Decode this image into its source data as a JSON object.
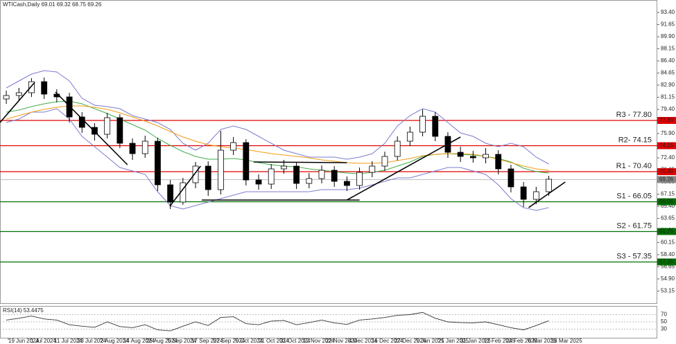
{
  "chart_data": {
    "type": "candlestick",
    "title": "WTICash,Daily  69.01 69.32 68.75 69.26",
    "x": [
      0,
      1,
      2,
      3,
      4,
      5,
      6,
      7,
      8,
      9,
      10,
      11,
      12,
      13,
      14,
      15,
      16,
      17,
      18,
      19,
      20,
      21,
      22,
      23,
      24,
      25,
      26,
      27,
      28,
      29,
      30,
      31,
      32,
      33,
      34,
      35,
      36,
      37,
      38,
      39,
      40,
      41,
      42,
      43
    ],
    "open": [
      80.9,
      81.4,
      81.8,
      83.4,
      81.6,
      81.2,
      78.3,
      76.8,
      75.8,
      78.2,
      74.5,
      73.0,
      74.8,
      68.5,
      66.0,
      68.8,
      71.2,
      67.8,
      73.5,
      74.6,
      69.2,
      68.6,
      70.8,
      71.2,
      68.7,
      69.4,
      70.6,
      69.0,
      68.4,
      70.3,
      71.2,
      72.6,
      74.8,
      76.1,
      78.4,
      75.5,
      73.2,
      72.6,
      72.4,
      72.9,
      70.8,
      68.2,
      66.4,
      67.5
    ],
    "high": [
      82.1,
      82.5,
      83.9,
      84.0,
      82.3,
      81.8,
      79.0,
      77.4,
      78.9,
      78.7,
      75.2,
      75.6,
      75.3,
      69.2,
      69.5,
      71.8,
      71.9,
      76.3,
      75.4,
      75.1,
      70.0,
      71.5,
      72.1,
      71.8,
      70.2,
      71.3,
      71.2,
      69.7,
      71.0,
      71.9,
      73.3,
      75.5,
      76.9,
      79.4,
      79.0,
      76.1,
      74.0,
      73.4,
      73.8,
      73.5,
      71.4,
      68.9,
      68.2,
      69.8
    ],
    "low": [
      80.2,
      80.7,
      81.2,
      80.9,
      80.4,
      77.5,
      76.0,
      74.9,
      75.2,
      73.8,
      72.1,
      72.4,
      67.6,
      65.0,
      65.6,
      68.0,
      66.9,
      67.1,
      72.8,
      68.4,
      67.8,
      67.9,
      70.1,
      67.9,
      68.0,
      68.7,
      68.2,
      67.6,
      67.8,
      69.6,
      70.5,
      72.0,
      74.1,
      75.5,
      74.8,
      72.4,
      71.8,
      71.7,
      71.6,
      70.0,
      67.4,
      65.3,
      65.7,
      66.9
    ],
    "close": [
      81.4,
      81.8,
      83.4,
      81.6,
      81.2,
      78.3,
      76.8,
      75.8,
      78.2,
      74.5,
      73.0,
      74.8,
      68.5,
      66.0,
      68.8,
      71.2,
      67.8,
      73.5,
      74.6,
      69.2,
      68.6,
      70.8,
      71.2,
      68.7,
      69.4,
      70.6,
      69.0,
      68.4,
      70.3,
      71.2,
      72.6,
      74.8,
      76.1,
      78.4,
      75.5,
      73.2,
      72.6,
      72.4,
      72.9,
      70.8,
      68.2,
      66.4,
      67.5,
      69.3
    ],
    "overlays": [
      {
        "color": "#7b7bd0",
        "values": [
          82.5,
          83.5,
          84.5,
          85.0,
          84.8,
          83.5,
          81.0,
          80.0,
          79.8,
          79.5,
          78.5,
          78.0,
          77.5,
          76.5,
          74.5,
          73.5,
          74.5,
          76.5,
          77.0,
          76.5,
          75.5,
          74.5,
          73.5,
          73.0,
          72.5,
          72.5,
          72.5,
          72.2,
          72.5,
          73.0,
          74.5,
          77.0,
          78.5,
          79.5,
          79.0,
          77.5,
          76.0,
          75.5,
          74.5,
          74.0,
          74.5,
          74.0,
          72.5,
          71.5
        ]
      },
      {
        "color": "#7b7bd0",
        "values": [
          77.5,
          78.0,
          79.0,
          79.0,
          79.5,
          78.0,
          75.5,
          74.0,
          72.5,
          71.0,
          70.5,
          70.0,
          67.5,
          65.5,
          65.0,
          65.5,
          66.0,
          66.5,
          67.0,
          67.5,
          67.5,
          67.5,
          67.5,
          67.5,
          67.5,
          67.8,
          67.8,
          67.8,
          68.0,
          68.5,
          69.0,
          69.5,
          69.5,
          70.0,
          70.5,
          71.0,
          71.0,
          70.5,
          70.0,
          68.5,
          66.5,
          65.2,
          64.8,
          65.2
        ]
      },
      {
        "color": "#3fae49",
        "values": [
          79.0,
          79.3,
          79.8,
          80.2,
          80.5,
          80.6,
          80.2,
          79.5,
          78.8,
          78.0,
          77.2,
          76.4,
          75.2,
          74.2,
          73.3,
          72.6,
          72.2,
          72.2,
          72.3,
          72.1,
          71.7,
          71.4,
          71.2,
          71.1,
          70.8,
          70.6,
          70.4,
          70.2,
          70.1,
          70.3,
          70.6,
          71.2,
          71.8,
          72.6,
          72.9,
          73.0,
          72.9,
          72.8,
          72.6,
          72.3,
          71.8,
          70.9,
          70.4,
          70.2
        ]
      },
      {
        "color": "#f39c12",
        "values": [
          78.0,
          78.5,
          79.0,
          79.4,
          79.7,
          79.9,
          79.9,
          79.7,
          79.4,
          78.9,
          78.3,
          77.7,
          77.0,
          76.2,
          75.4,
          74.8,
          74.3,
          74.0,
          73.8,
          73.6,
          73.3,
          73.0,
          72.8,
          72.6,
          72.4,
          72.1,
          71.9,
          71.7,
          71.6,
          71.6,
          71.7,
          72.0,
          72.3,
          72.7,
          72.9,
          73.0,
          73.0,
          72.9,
          72.6,
          72.2,
          71.7,
          71.2,
          70.8,
          70.6
        ]
      }
    ],
    "trendlines": [
      {
        "x": [
          -0.5,
          2.25
        ],
        "y": [
          77.5,
          83.3
        ]
      },
      {
        "x": [
          3.9,
          9.6
        ],
        "y": [
          81.9,
          71.4
        ]
      },
      {
        "x": [
          12.96,
          15.4
        ],
        "y": [
          65.4,
          71.2
        ]
      },
      {
        "x": [
          15.5,
          28.0
        ],
        "y": [
          66.3,
          66.3
        ]
      },
      {
        "x": [
          19.6,
          27.0
        ],
        "y": [
          71.8,
          71.7
        ]
      },
      {
        "x": [
          27.0,
          36.0
        ],
        "y": [
          66.3,
          75.4
        ]
      },
      {
        "x": [
          41.4,
          44.3
        ],
        "y": [
          65.2,
          68.9
        ]
      }
    ],
    "levels": [
      {
        "name": "R3 - 77.80",
        "value": 77.8,
        "tag": "77.80",
        "color": "#e00000"
      },
      {
        "name": "R2- 74.15",
        "value": 74.15,
        "tag": "74.15",
        "color": "#e00000"
      },
      {
        "name": "R1 - 70.40",
        "value": 70.4,
        "tag": "70.40",
        "color": "#e00000"
      },
      {
        "name": "S1 - 66.05",
        "value": 66.05,
        "tag": "66.05",
        "color": "#006e00"
      },
      {
        "name": "S2 - 61.75",
        "value": 61.75,
        "tag": "61.75",
        "color": "#006e00"
      },
      {
        "name": "S3 - 57.35",
        "value": 57.35,
        "tag": "57.35",
        "color": "#006e00"
      }
    ],
    "last": {
      "value": 69.26,
      "tag": "69.26"
    },
    "xlim": [
      -0.5,
      51.6
    ],
    "ylim": [
      51.4,
      95.0
    ],
    "yticks": [
      {
        "value": 93.4,
        "label": "93.40"
      },
      {
        "value": 91.65,
        "label": "91.65"
      },
      {
        "value": 89.9,
        "label": "89.90"
      },
      {
        "value": 88.15,
        "label": "88.15"
      },
      {
        "value": 86.4,
        "label": "86.40"
      },
      {
        "value": 84.65,
        "label": "84.65"
      },
      {
        "value": 82.9,
        "label": "82.90"
      },
      {
        "value": 81.15,
        "label": "81.15"
      },
      {
        "value": 79.4,
        "label": "79.40"
      },
      {
        "value": 77.65,
        "label": "77.65"
      },
      {
        "value": 75.9,
        "label": "75.90"
      },
      {
        "value": 74.15,
        "label": "74.15"
      },
      {
        "value": 72.4,
        "label": "72.40"
      },
      {
        "value": 70.65,
        "label": "70.65"
      },
      {
        "value": 68.9,
        "label": "68.90"
      },
      {
        "value": 67.15,
        "label": "67.15"
      },
      {
        "value": 65.4,
        "label": "65.40"
      },
      {
        "value": 63.65,
        "label": "63.65"
      },
      {
        "value": 61.9,
        "label": "61.90"
      },
      {
        "value": 60.15,
        "label": "60.15"
      },
      {
        "value": 58.4,
        "label": "58.40"
      },
      {
        "value": 56.65,
        "label": "56.65"
      },
      {
        "value": 54.9,
        "label": "54.90"
      },
      {
        "value": 53.15,
        "label": "53.15"
      }
    ],
    "xticks": [
      {
        "value": 0.16,
        "label": "19 Jun 2024"
      },
      {
        "value": 1.92,
        "label": "1 Jul 2024"
      },
      {
        "value": 3.79,
        "label": "11 Jul 2024"
      },
      {
        "value": 5.65,
        "label": "23 Jul 2024"
      },
      {
        "value": 7.47,
        "label": "2 Aug 2024"
      },
      {
        "value": 9.28,
        "label": "14 Aug 2024"
      },
      {
        "value": 11.09,
        "label": "26 Aug 2024"
      },
      {
        "value": 12.8,
        "label": "5 Sep 2024"
      },
      {
        "value": 14.67,
        "label": "17 Sep 2024"
      },
      {
        "value": 16.42,
        "label": "27 Sep 2024"
      },
      {
        "value": 18.18,
        "label": "9 Oct 2024"
      },
      {
        "value": 19.99,
        "label": "21 Oct 2024"
      },
      {
        "value": 21.7,
        "label": "31 Oct 2024"
      },
      {
        "value": 23.51,
        "label": "12 Nov 2024"
      },
      {
        "value": 25.32,
        "label": "22 Nov 2024"
      },
      {
        "value": 27.14,
        "label": "4 Dec 2024"
      },
      {
        "value": 28.95,
        "label": "16 Dec 2024"
      },
      {
        "value": 30.77,
        "label": "27 Dec 2024"
      },
      {
        "value": 32.52,
        "label": "9 Jan 2025"
      },
      {
        "value": 34.23,
        "label": "21 Jan 2025"
      },
      {
        "value": 35.98,
        "label": "31 Jan 2025"
      },
      {
        "value": 37.85,
        "label": "12 Feb 2025"
      },
      {
        "value": 39.61,
        "label": "24 Feb 2025"
      },
      {
        "value": 41.37,
        "label": "6 Mar 2025"
      },
      {
        "value": 43.18,
        "label": "18 Mar 2025"
      }
    ],
    "rsi": {
      "label": "RSI(14) 53.4475",
      "color": "#333333",
      "values": [
        55,
        60,
        66,
        58,
        55,
        42,
        38,
        35,
        50,
        37,
        34,
        42,
        28,
        25,
        38,
        50,
        40,
        62,
        64,
        45,
        42,
        52,
        54,
        42,
        48,
        55,
        47,
        43,
        55,
        58,
        62,
        68,
        70,
        76,
        60,
        50,
        48,
        47,
        50,
        42,
        34,
        28,
        40,
        53
      ],
      "ylim": [
        10,
        90
      ],
      "yticks": [
        30,
        50,
        70
      ]
    }
  }
}
